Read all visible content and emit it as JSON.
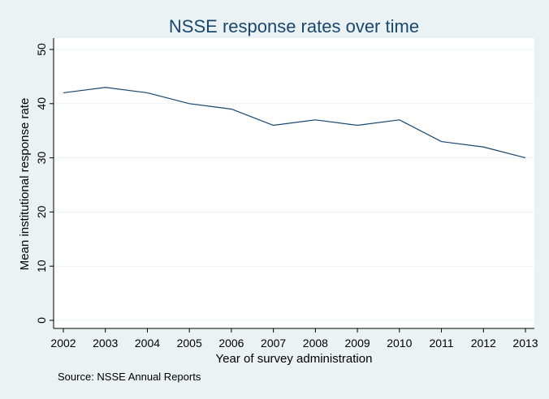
{
  "chart_data": {
    "type": "line",
    "title": "NSSE response rates over time",
    "xlabel": "Year of survey administration",
    "ylabel": "Mean institutional response rate",
    "note": "Source: NSSE Annual Reports",
    "categories": [
      "2002",
      "2003",
      "2004",
      "2005",
      "2006",
      "2007",
      "2008",
      "2009",
      "2010",
      "2011",
      "2012",
      "2013"
    ],
    "series": [
      {
        "name": "Mean institutional response rate",
        "values": [
          42,
          43,
          42,
          40,
          39,
          36,
          37,
          36,
          37,
          33,
          32,
          30
        ]
      }
    ],
    "ylim": [
      0,
      50
    ],
    "yticks": [
      0,
      10,
      20,
      30,
      40,
      50
    ],
    "grid": true,
    "colors": {
      "background": "#eaf2f3",
      "plot_background": "#ffffff",
      "line": "#1a476f",
      "title": "#1a476f",
      "text": "#000000",
      "grid": "#eaf2f3"
    }
  }
}
